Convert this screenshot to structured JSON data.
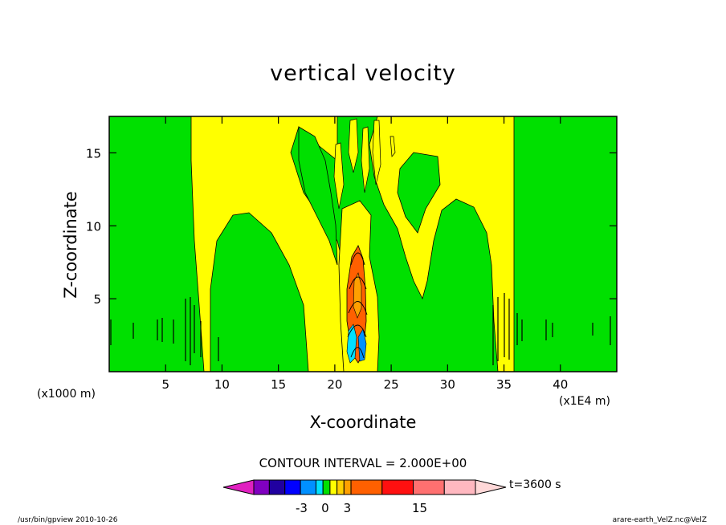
{
  "chart_data": {
    "type": "heatmap",
    "title": "vertical velocity",
    "xlabel": "X-coordinate",
    "ylabel": "Z-coordinate",
    "x_unit_left": "(x1000 m)",
    "x_unit_right": "(x1E4 m)",
    "xlim": [
      0,
      45
    ],
    "ylim": [
      0,
      17.5
    ],
    "x_ticks": [
      5,
      10,
      15,
      20,
      25,
      30,
      35,
      40
    ],
    "y_ticks": [
      5,
      10,
      15
    ],
    "contour_interval": "CONTOUR INTERVAL = 2.000E+00",
    "time_label": "t=3600 s",
    "colorbar": {
      "tick_labels": [
        "-3",
        "0",
        "3",
        "15"
      ],
      "colors": [
        "#e020c0",
        "#8000c0",
        "#2000a0",
        "#0000ff",
        "#0090ff",
        "#00e0ff",
        "#00e000",
        "#ffff00",
        "#ffd000",
        "#ffa000",
        "#ff6000",
        "#ff1010",
        "#ff7070",
        "#ffb8c0",
        "#ffd8d8"
      ]
    },
    "regions": [
      {
        "name": "background",
        "color": "#00e000"
      },
      {
        "name": "left-yellow-band",
        "color": "#ffff00"
      },
      {
        "name": "right-yellow-band",
        "color": "#ffff00"
      },
      {
        "name": "central-updraft",
        "color": "#ff6000"
      },
      {
        "name": "central-downdraft",
        "color": "#00e0ff"
      }
    ]
  },
  "footer": {
    "left": "/usr/bin/gpview   2010-10-26",
    "right": "arare-earth_VelZ.nc@VelZ"
  }
}
